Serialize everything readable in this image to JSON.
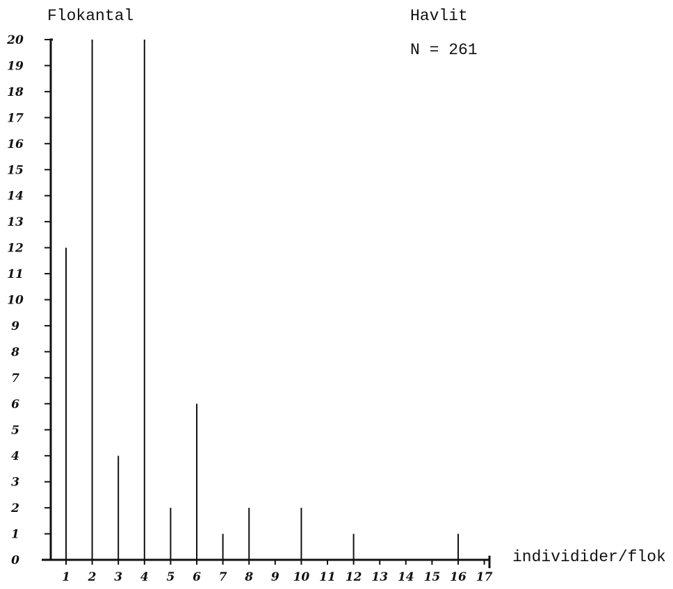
{
  "chart_data": {
    "type": "bar",
    "title": "Havlit",
    "subtitle": "N = 261",
    "ylabel": "Flokantal",
    "xlabel": "individider/flok",
    "x_ticks": [
      "1",
      "2",
      "3",
      "4",
      "5",
      "6",
      "7",
      "8",
      "9",
      "10",
      "11",
      "12",
      "13",
      "14",
      "15",
      "16",
      "17"
    ],
    "y_ticks": [
      "0",
      "1",
      "2",
      "3",
      "4",
      "5",
      "6",
      "7",
      "8",
      "9",
      "10",
      "11",
      "12",
      "13",
      "14",
      "15",
      "16",
      "17",
      "18",
      "19",
      "20"
    ],
    "xlim": [
      0,
      17.5
    ],
    "ylim": [
      0,
      20
    ],
    "categories": [
      1,
      2,
      3,
      4,
      5,
      6,
      7,
      8,
      10,
      12,
      16
    ],
    "values": [
      12,
      20,
      4,
      20,
      2,
      6,
      1,
      2,
      2,
      1,
      1
    ],
    "grid": false,
    "legend": "none",
    "bar_style": "thin vertical lines",
    "colors": {
      "ink": "#111111",
      "background": "#ffffff"
    }
  }
}
